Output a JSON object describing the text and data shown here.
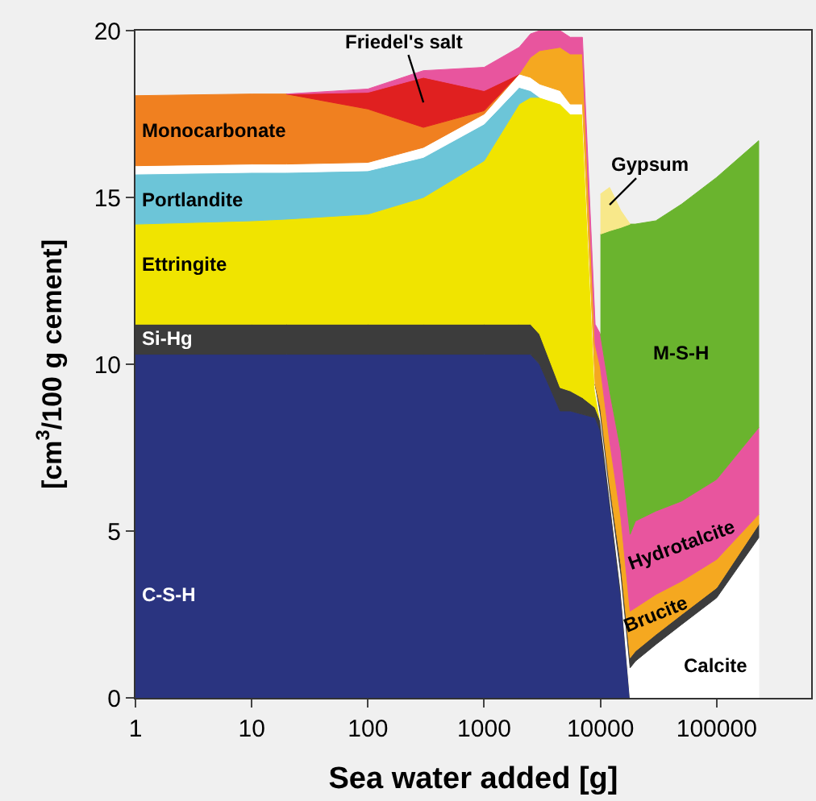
{
  "chart_data": {
    "type": "area",
    "stacked": true,
    "log": "x",
    "xlabel": "Sea water added [g]",
    "ylabel": "[cm$^{3}$/100 g cement]",
    "x": [
      1,
      10,
      20,
      100,
      300,
      1000,
      2000,
      2500,
      3000,
      4500,
      5500,
      7000,
      9000,
      10000,
      12000,
      15000,
      18000,
      20000,
      30000,
      50000,
      100000,
      230000
    ],
    "xlim": [
      1,
      650000
    ],
    "xticks": [
      1,
      10,
      100,
      1000,
      10000,
      100000
    ],
    "ylim": [
      0,
      20
    ],
    "yticks": [
      0,
      5,
      10,
      15,
      20
    ],
    "grid": false,
    "series": [
      {
        "name": "C-S-H",
        "color": "#2a3480",
        "values": [
          10.3,
          10.3,
          10.3,
          10.3,
          10.3,
          10.3,
          10.3,
          10.3,
          10.0,
          8.6,
          8.6,
          8.5,
          8.4,
          8.0,
          5.8,
          3.0,
          0,
          null,
          null,
          null,
          null,
          null
        ]
      },
      {
        "name": "Si-Hg",
        "color": "#3c3c3c",
        "values": [
          0.9,
          0.9,
          0.9,
          0.9,
          0.9,
          0.9,
          0.9,
          0.9,
          0.9,
          0.7,
          0.6,
          0.5,
          0.3,
          0.3,
          0.2,
          0.2,
          0,
          null,
          null,
          null,
          null,
          null
        ]
      },
      {
        "name": "Ettringite",
        "color": "#f0e400",
        "values": [
          3.0,
          3.1,
          3.15,
          3.3,
          3.8,
          4.9,
          6.6,
          6.8,
          7.1,
          8.5,
          8.3,
          8.5,
          0.5,
          0,
          null,
          null,
          null,
          null,
          null,
          null,
          null,
          null
        ]
      },
      {
        "name": "Portlandite",
        "color": "#6cc5d8",
        "values": [
          1.5,
          1.45,
          1.4,
          1.3,
          1.2,
          1.1,
          0.5,
          0.2,
          0,
          null,
          null,
          null,
          null,
          null,
          null,
          null,
          null,
          null,
          null,
          null,
          null,
          null
        ]
      },
      {
        "name": "Calcite",
        "color": "#ffffff",
        "values": [
          0.25,
          0.25,
          0.25,
          0.25,
          0.3,
          0.3,
          0.4,
          0.4,
          0.4,
          0.4,
          0.3,
          0.3,
          0.2,
          0.2,
          0.2,
          0.5,
          0.9,
          1.1,
          1.6,
          2.2,
          3.0,
          4.8
        ]
      },
      {
        "color": "#3c3c3c",
        "values": [
          null,
          null,
          null,
          null,
          null,
          null,
          null,
          null,
          null,
          null,
          null,
          null,
          0,
          0.2,
          0.2,
          0.3,
          0.3,
          0.3,
          0.3,
          0.3,
          0.3,
          0.4
        ]
      },
      {
        "name": "Monocarbonate",
        "color": "#f08020",
        "values": [
          2.1,
          2.1,
          2.1,
          1.6,
          0.6,
          0.1,
          0,
          null,
          null,
          null,
          null,
          null,
          null,
          null,
          null,
          null,
          null,
          null,
          null,
          null,
          null,
          null
        ]
      },
      {
        "name": "Friedel's salt",
        "color": "#e02020",
        "values": [
          null,
          null,
          0,
          0.5,
          1.5,
          0.6,
          0,
          null,
          null,
          null,
          null,
          null,
          null,
          null,
          null,
          null,
          null,
          null,
          null,
          null,
          null,
          null
        ]
      },
      {
        "name": "Brucite",
        "color": "#f5a820",
        "values": [
          null,
          null,
          null,
          null,
          null,
          null,
          0,
          0.6,
          1.0,
          1.3,
          1.5,
          1.5,
          1.2,
          1.2,
          1.3,
          1.4,
          1.4,
          1.3,
          1.2,
          1.0,
          0.85,
          0.3
        ]
      },
      {
        "name": "Hydrotalcite",
        "color": "#e8559e",
        "values": [
          null,
          null,
          0,
          0.1,
          0.2,
          0.7,
          0.8,
          0.7,
          0.6,
          0.5,
          0.5,
          0.5,
          0.6,
          1.0,
          1.5,
          2.0,
          2.3,
          2.6,
          2.5,
          2.4,
          2.4,
          2.6
        ]
      },
      {
        "name": "M-S-H",
        "color": "#6ab42e",
        "values": [
          null,
          null,
          null,
          null,
          null,
          null,
          null,
          null,
          null,
          null,
          null,
          null,
          null,
          3.0,
          4.8,
          6.7,
          9.3,
          8.9,
          8.7,
          8.9,
          9.05,
          8.6
        ]
      },
      {
        "name": "Gypsum",
        "color": "#f8e88a",
        "values": [
          null,
          null,
          null,
          null,
          null,
          null,
          null,
          null,
          null,
          null,
          null,
          null,
          null,
          1.2,
          1.3,
          0.5,
          0,
          null,
          null,
          null,
          null,
          null
        ]
      }
    ]
  }
}
